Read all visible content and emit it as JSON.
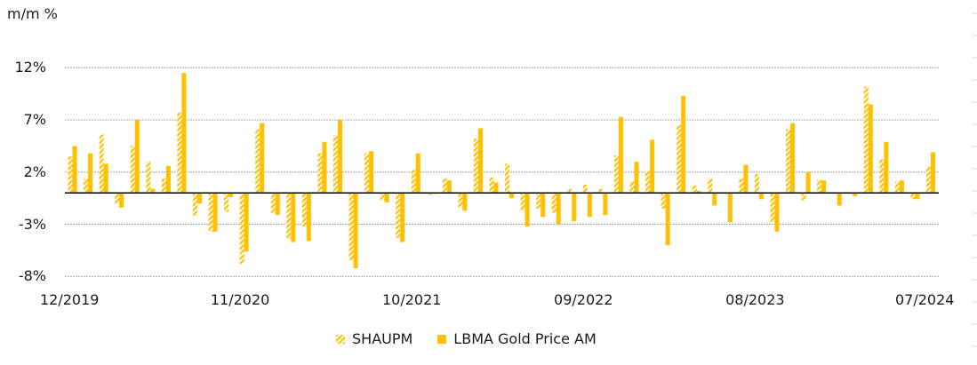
{
  "chart_data": {
    "type": "bar",
    "title": "",
    "ylabel": "m/m %",
    "xlabel": "",
    "ylim": [
      -8,
      12
    ],
    "yticks": [
      12,
      7,
      2,
      -3,
      -8
    ],
    "ytick_labels": [
      "12%",
      "7%",
      "2%",
      "-3%",
      "-8%"
    ],
    "grid": true,
    "legend_position": "bottom",
    "x_tick_labels": [
      "12/2019",
      "11/2020",
      "10/2021",
      "09/2022",
      "08/2023",
      "07/2024"
    ],
    "x_tick_indices": [
      0,
      11,
      22,
      33,
      44,
      55
    ],
    "categories": [
      "12/2019",
      "01/2020",
      "02/2020",
      "03/2020",
      "04/2020",
      "05/2020",
      "06/2020",
      "07/2020",
      "08/2020",
      "09/2020",
      "10/2020",
      "11/2020",
      "12/2020",
      "01/2021",
      "02/2021",
      "03/2021",
      "04/2021",
      "05/2021",
      "06/2021",
      "07/2021",
      "08/2021",
      "09/2021",
      "10/2021",
      "11/2021",
      "12/2021",
      "01/2022",
      "02/2022",
      "03/2022",
      "04/2022",
      "05/2022",
      "06/2022",
      "07/2022",
      "08/2022",
      "09/2022",
      "10/2022",
      "11/2022",
      "12/2022",
      "01/2023",
      "02/2023",
      "03/2023",
      "04/2023",
      "05/2023",
      "06/2023",
      "07/2023",
      "08/2023",
      "09/2023",
      "10/2023",
      "11/2023",
      "12/2023",
      "01/2024",
      "02/2024",
      "03/2024",
      "04/2024",
      "05/2024",
      "06/2024",
      "07/2024"
    ],
    "series": [
      {
        "name": "SHAUPM",
        "style": "hatched",
        "color": "#FFC000",
        "values": [
          3.5,
          1.4,
          5.6,
          -1.0,
          4.5,
          3.0,
          1.4,
          7.7,
          -2.2,
          -3.7,
          -1.8,
          -6.8,
          6.1,
          -1.9,
          -4.4,
          -3.2,
          3.8,
          5.5,
          -6.4,
          3.8,
          -0.7,
          -4.3,
          2.2,
          -0.2,
          1.4,
          -1.4,
          5.2,
          1.5,
          2.8,
          -1.7,
          -1.5,
          -1.9,
          0.4,
          0.8,
          0.4,
          3.6,
          1.1,
          2.1,
          -1.5,
          6.5,
          0.7,
          1.4,
          -0.1,
          1.4,
          1.8,
          -2.8,
          6.1,
          -0.7,
          1.3,
          0.0,
          -0.1,
          10.2,
          3.2,
          1.1,
          -0.6,
          2.5
        ]
      },
      {
        "name": "LBMA Gold Price AM",
        "style": "solid",
        "color": "#FFC000",
        "values": [
          4.5,
          3.8,
          2.8,
          -1.4,
          7.0,
          0.4,
          2.6,
          11.5,
          -1.0,
          -3.7,
          -0.4,
          -5.6,
          6.7,
          -2.1,
          -4.7,
          -4.6,
          4.9,
          7.0,
          -7.2,
          4.0,
          -0.9,
          -4.7,
          3.8,
          -0.1,
          1.2,
          -1.7,
          6.2,
          1.0,
          -0.5,
          -3.2,
          -2.3,
          -3.0,
          -2.7,
          -2.3,
          -2.1,
          7.3,
          3.0,
          5.1,
          -5.0,
          9.3,
          0.2,
          -1.2,
          -2.8,
          2.7,
          -0.6,
          -3.7,
          6.7,
          2.0,
          1.2,
          -1.2,
          -0.3,
          8.5,
          4.9,
          1.2,
          -0.6,
          3.9
        ]
      }
    ]
  },
  "legend": {
    "items": [
      {
        "label": "SHAUPM",
        "style": "hatched"
      },
      {
        "label": "LBMA Gold Price AM",
        "style": "solid"
      }
    ]
  },
  "colors": {
    "bar": "#FFC000",
    "grid": "#a6a6a6",
    "zero_line": "#000000",
    "text": "#1a1a1a"
  }
}
